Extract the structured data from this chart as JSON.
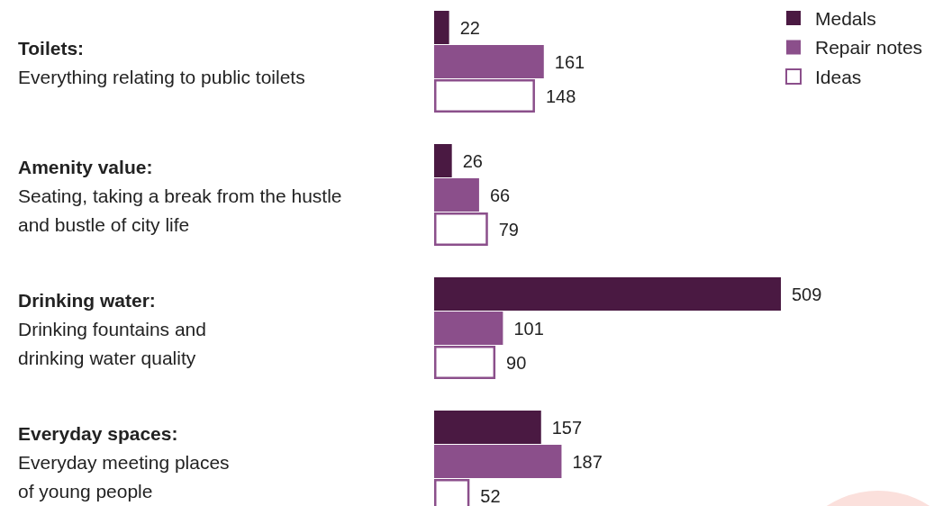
{
  "chart_data": {
    "type": "bar",
    "orientation": "horizontal",
    "categories": [
      "Toilets:\nEverything relating to public toilets",
      "Amenity value:\nSeating, taking a break from the hustle\nand bustle of city life",
      "Drinking water:\nDrinking fountains and\ndrinking water quality",
      "Everyday spaces:\nEveryday meeting places\nof young people"
    ],
    "series": [
      {
        "name": "Medals",
        "color": "#4a1942",
        "values": [
          22,
          26,
          509,
          157
        ]
      },
      {
        "name": "Repair notes",
        "color": "#8b4f8b",
        "values": [
          161,
          66,
          101,
          187
        ]
      },
      {
        "name": "Ideas",
        "color": "#ffffff",
        "type": "bar",
        "values": [
          148,
          79,
          90,
          52
        ]
      }
    ],
    "data_labels": true,
    "legend": "top right"
  }
}
